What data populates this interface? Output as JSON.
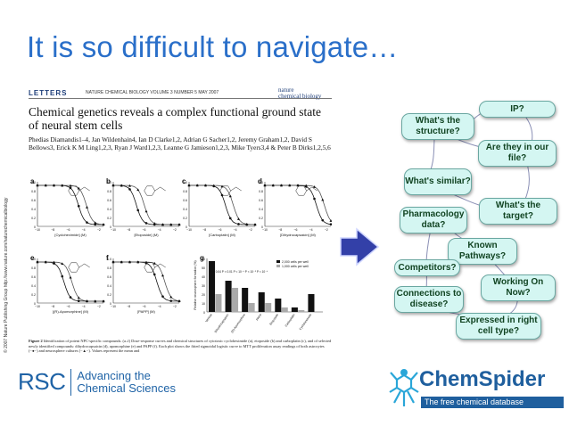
{
  "slide_title": "It is so difficult to navigate…",
  "paper": {
    "section": "LETTERS",
    "journal_line": "NATURE CHEMICAL BIOLOGY VOLUME 3 NUMBER 5 MAY 2007",
    "journal_logo_line1": "nature",
    "journal_logo_line2": "chemical biology",
    "title": "Chemical genetics reveals a complex functional ground state of neural stem cells",
    "authors": "Phedias Diamandis1–4, Jan Wildenhain4, Ian D Clarke1,2, Adrian G Sacher1,2, Jeremy Graham1,2, David S Bellows3, Erick K M Ling1,2,3, Ryan J Ward1,2,3, Leanne G Jamieson1,2,3, Mike Tyers3,4 & Peter B Dirks1,2,5,6",
    "copyright_vertical": "© 2007 Nature Publishing Group http://www.nature.com/naturechemicalbiology",
    "panels": [
      {
        "label": "a",
        "xlabel": "[Cycloheximide] (M)"
      },
      {
        "label": "b",
        "xlabel": "[Etoposide] (M)"
      },
      {
        "label": "c",
        "xlabel": "[Carboplatin] (M)"
      },
      {
        "label": "d",
        "xlabel": "[Dihydrocapsaicin] (M)"
      },
      {
        "label": "e",
        "xlabel": "[(R)-Apomorphine] (M)"
      },
      {
        "label": "f",
        "xlabel": "[PAPP] (M)"
      },
      {
        "label": "g",
        "xlabel": ""
      }
    ],
    "y_axis_label": "Normalized MTT",
    "y_ticks": [
      "1.0",
      "0.8",
      "0.6",
      "0.4",
      "0.2",
      "0"
    ],
    "x_ticks": [
      "−10",
      "−8",
      "−6",
      "−4",
      "−2"
    ],
    "bar_chart": {
      "ylabel": "Relative neurosphere formation (%)",
      "y_ticks": [
        "60",
        "50",
        "40",
        "30",
        "20",
        "10",
        "0"
      ],
      "legend": [
        "2,000 cells per well",
        "1,000 cells per well"
      ],
      "categories": [
        "Vehicle",
        "Dihydrocapsaicin",
        "(R)-Apomorphine",
        "PAPP",
        "Etoposide",
        "Carboplatin",
        "Cycloheximide"
      ],
      "series_dark": [
        57,
        35,
        27,
        22,
        15,
        5,
        20
      ],
      "series_light": [
        20,
        27,
        10,
        10,
        5,
        2,
        0
      ],
      "pvalues": "P = 0.04   P < 0.01   P < 10⁻⁴   P < 10⁻⁵   P < 10⁻⁶"
    },
    "caption_label": "Figure 2",
    "caption": "Identification of potent NPC-specific compounds. (a–f) Dose-response curves and chemical structures of cytotoxic cycloheximide (a), etoposide (b) and carboplatin (c), and of selected newly identified compounds: dihydrocapsaicin (d), apomorphine (e) and PAPP (f). Each plot shows the fitted sigmoidal logistic curve to MTT proliferation assay readings of both astrocytes (−●−) and neurosphere cultures (−▲−). Values represent the mean and"
  },
  "questions": [
    {
      "id": "ip",
      "text": "IP?"
    },
    {
      "id": "structure",
      "text": "What's the structure?"
    },
    {
      "id": "in-our-file",
      "text": "Are they in our file?"
    },
    {
      "id": "similar",
      "text": "What's similar?"
    },
    {
      "id": "target",
      "text": "What's the target?"
    },
    {
      "id": "pharmacology",
      "text": "Pharmacology data?"
    },
    {
      "id": "pathways",
      "text": "Known Pathways?"
    },
    {
      "id": "competitors",
      "text": "Competitors?"
    },
    {
      "id": "working-on",
      "text": "Working On Now?"
    },
    {
      "id": "disease",
      "text": "Connections to disease?"
    },
    {
      "id": "cell-type",
      "text": "Expressed in right cell type?"
    }
  ],
  "rsc_logo": {
    "mark": "RSC",
    "line1": "Advancing the",
    "line2": "Chemical Sciences"
  },
  "chemspider_logo": {
    "name": "ChemSpider",
    "tagline": "The free chemical database"
  },
  "colors": {
    "title": "#2a6fc9",
    "box_fill": "#d4f6f2",
    "box_border": "#6aa7a1",
    "arrow": "#3340a8",
    "brand_blue": "#1f5f9e"
  }
}
